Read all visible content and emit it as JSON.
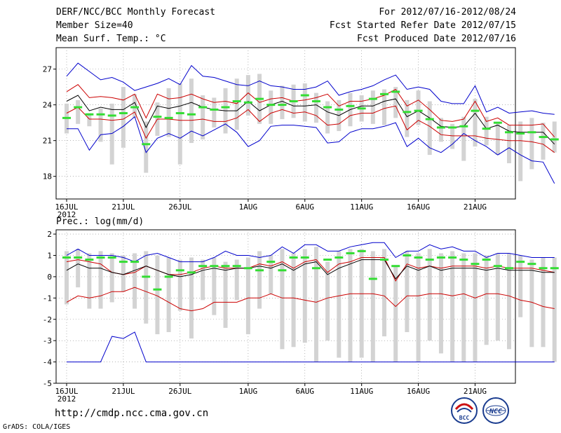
{
  "header": {
    "left_line1": "DERF/NCC/BCC Monthly Forecast",
    "left_line2": "Member Size=40",
    "left_line3": "Mean Surf. Temp.: °C",
    "right_line1": "For 2012/07/16-2012/08/24",
    "right_line2": "Fcst Started Refer Date 2012/07/15",
    "right_line3": "Fcst Produced Date 2012/07/16"
  },
  "precip_title": "Prec.: log(mm/d)",
  "footer": {
    "url": "http://cmdp.ncc.cma.gov.cn",
    "grads": "GrADS: COLA/IGES"
  },
  "logos": {
    "left": "BCC",
    "right": "NCC"
  },
  "colors": {
    "max_min": "#0000cc",
    "spread": "#cc0000",
    "mean": "#000000",
    "obs": "#33dd33",
    "box": "#d3d3d3"
  },
  "chart_data": [
    {
      "type": "line",
      "title": "Mean Surf. Temp.: °C",
      "x_tick_labels": [
        "16JUL",
        "21JUL",
        "26JUL",
        "1AUG",
        "6AUG",
        "11AUG",
        "16AUG",
        "21AUG"
      ],
      "x_tick_sublabel": "2012",
      "x_tick_days": [
        1,
        6,
        11,
        17,
        22,
        27,
        32,
        37
      ],
      "days": 40,
      "ylim": [
        16.1,
        28.8
      ],
      "yticks": [
        18,
        21,
        24,
        27
      ],
      "series": [
        {
          "name": "ensemble max",
          "color": "#0000cc",
          "values": [
            26.4,
            27.5,
            26.8,
            26.1,
            26.3,
            25.9,
            25.2,
            25.5,
            25.8,
            26.2,
            25.7,
            27.3,
            26.4,
            26.3,
            26.0,
            25.7,
            25.6,
            26.0,
            25.6,
            25.5,
            25.3,
            25.3,
            25.5,
            26.0,
            24.8,
            25.1,
            25.3,
            25.6,
            26.1,
            26.5,
            25.3,
            25.5,
            25.3,
            24.3,
            24.1,
            24.1,
            25.6,
            23.4,
            23.8,
            23.3,
            23.4,
            23.5,
            23.3,
            23.2
          ]
        },
        {
          "name": "ensemble min",
          "color": "#0000cc",
          "values": [
            22.0,
            22.0,
            20.2,
            21.5,
            21.6,
            22.2,
            23.0,
            20.0,
            21.2,
            21.6,
            21.2,
            21.8,
            21.4,
            21.9,
            22.4,
            21.7,
            20.5,
            21.0,
            22.2,
            22.3,
            22.3,
            22.2,
            22.1,
            20.8,
            20.9,
            21.7,
            22.0,
            22.0,
            22.2,
            22.5,
            20.5,
            21.2,
            20.4,
            20.0,
            20.7,
            21.6,
            21.0,
            20.5,
            19.8,
            20.4,
            19.8,
            19.3,
            19.2,
            17.4
          ]
        },
        {
          "name": "upper spread",
          "color": "#cc0000",
          "values": [
            25.1,
            25.7,
            24.6,
            24.7,
            24.6,
            24.4,
            24.9,
            22.9,
            24.9,
            24.5,
            24.6,
            24.9,
            24.5,
            24.2,
            24.3,
            24.1,
            25.0,
            24.2,
            24.5,
            24.6,
            24.3,
            24.4,
            24.6,
            24.9,
            23.9,
            24.3,
            24.3,
            24.5,
            24.8,
            25.3,
            23.9,
            24.4,
            23.6,
            22.7,
            22.6,
            22.8,
            24.3,
            22.6,
            22.9,
            22.3,
            22.3,
            22.3,
            22.4,
            21.3
          ]
        },
        {
          "name": "lower spread",
          "color": "#cc0000",
          "values": [
            23.3,
            23.8,
            22.8,
            22.8,
            22.7,
            22.8,
            23.4,
            21.2,
            22.8,
            22.8,
            22.7,
            22.7,
            22.8,
            22.6,
            22.6,
            22.9,
            23.6,
            22.6,
            23.3,
            23.6,
            23.3,
            23.4,
            23.1,
            22.3,
            22.4,
            23.1,
            23.3,
            23.3,
            23.7,
            23.9,
            21.9,
            22.7,
            22.2,
            21.5,
            21.4,
            21.4,
            21.4,
            21.2,
            21.1,
            21.0,
            21.0,
            20.9,
            20.7,
            20.0
          ]
        },
        {
          "name": "ensemble mean",
          "color": "#000000",
          "values": [
            24.3,
            24.8,
            23.5,
            23.8,
            23.6,
            23.6,
            24.2,
            22.1,
            23.9,
            23.7,
            23.9,
            24.2,
            23.8,
            23.6,
            23.5,
            23.5,
            24.3,
            23.5,
            24.0,
            24.3,
            23.9,
            23.9,
            24.0,
            23.4,
            23.1,
            23.6,
            23.9,
            23.9,
            24.3,
            24.5,
            23.0,
            23.5,
            22.9,
            22.2,
            22.1,
            22.2,
            23.3,
            22.0,
            22.3,
            21.8,
            21.7,
            21.7,
            21.7,
            20.7
          ]
        },
        {
          "name": "observation",
          "color": "#33dd33",
          "values": [
            22.9,
            23.8,
            23.2,
            23.2,
            23.1,
            23.3,
            23.8,
            20.7,
            23.0,
            22.9,
            23.3,
            23.2,
            23.8,
            23.6,
            23.8,
            24.3,
            24.2,
            24.5,
            24.0,
            24.0,
            24.3,
            24.8,
            24.3,
            23.8,
            23.6,
            23.9,
            23.7,
            24.5,
            24.9,
            25.1,
            23.4,
            23.5,
            22.8,
            22.1,
            22.1,
            22.2,
            23.5,
            22.0,
            22.5,
            21.7,
            21.6,
            21.7,
            21.3,
            21.1
          ]
        },
        {
          "name": "box top",
          "color": "#d3d3d3",
          "values": [
            24.1,
            24.4,
            23.3,
            23.7,
            24.1,
            25.5,
            24.9,
            22.6,
            24.2,
            25.4,
            25.8,
            26.2,
            24.8,
            24.6,
            25.4,
            26.2,
            26.5,
            26.6,
            25.2,
            25.6,
            25.7,
            25.8,
            25.0,
            24.3,
            24.4,
            25.0,
            24.8,
            25.2,
            25.3,
            25.5,
            24.4,
            25.2,
            24.3,
            22.9,
            22.4,
            23.0,
            24.5,
            23.0,
            22.5,
            22.3,
            22.6,
            22.9,
            22.5,
            22.6
          ]
        },
        {
          "name": "box bottom",
          "color": "#d3d3d3",
          "values": [
            21.6,
            22.4,
            22.2,
            20.9,
            19.0,
            20.4,
            22.9,
            18.3,
            21.4,
            21.3,
            19.0,
            20.8,
            21.1,
            22.1,
            21.6,
            21.9,
            23.1,
            22.4,
            22.4,
            22.8,
            22.9,
            22.6,
            22.5,
            21.6,
            21.8,
            22.2,
            22.6,
            22.4,
            22.3,
            22.9,
            21.3,
            22.3,
            19.8,
            20.9,
            20.3,
            19.3,
            20.5,
            20.6,
            19.8,
            19.1,
            17.6,
            18.6,
            19.4,
            20.0
          ]
        }
      ]
    },
    {
      "type": "line",
      "title": "Prec.: log(mm/d)",
      "x_tick_labels": [
        "16JUL",
        "21JUL",
        "26JUL",
        "1AUG",
        "6AUG",
        "11AUG",
        "16AUG",
        "21AUG"
      ],
      "x_tick_sublabel": "2012",
      "x_tick_days": [
        1,
        6,
        11,
        17,
        22,
        27,
        32,
        37
      ],
      "days": 40,
      "ylim": [
        -5,
        2.2
      ],
      "yticks": [
        -5,
        -4,
        -3,
        -2,
        -1,
        0,
        1,
        2
      ],
      "series": [
        {
          "name": "ensemble max",
          "color": "#0000cc",
          "values": [
            1.0,
            1.3,
            1.0,
            1.0,
            1.0,
            0.9,
            0.7,
            1.0,
            1.1,
            0.9,
            0.7,
            0.7,
            0.7,
            0.9,
            1.2,
            1.0,
            1.0,
            0.9,
            1.0,
            1.4,
            1.1,
            1.5,
            1.5,
            1.2,
            1.2,
            1.4,
            1.5,
            1.6,
            1.6,
            0.9,
            1.2,
            1.2,
            1.5,
            1.3,
            1.4,
            1.2,
            1.2,
            0.9,
            1.1,
            1.1,
            1.0,
            0.9,
            0.9,
            0.9
          ]
        },
        {
          "name": "ensemble min",
          "color": "#0000cc",
          "values": [
            -4.0,
            -4.0,
            -4.0,
            -4.0,
            -2.8,
            -2.9,
            -2.6,
            -4.0,
            -4.0,
            -4.0,
            -4.0,
            -4.0,
            -4.0,
            -4.0,
            -4.0,
            -4.0,
            -4.0,
            -4.0,
            -4.0,
            -4.0,
            -4.0,
            -4.0,
            -4.0,
            -4.0,
            -4.0,
            -4.0,
            -4.0,
            -4.0,
            -4.0,
            -4.0,
            -4.0,
            -4.0,
            -4.0,
            -4.0,
            -4.0,
            -4.0,
            -4.0,
            -4.0,
            -4.0,
            -4.0,
            -4.0,
            -4.0,
            -4.0,
            -4.0
          ]
        },
        {
          "name": "upper spread",
          "color": "#cc0000",
          "values": [
            0.7,
            0.8,
            0.7,
            0.6,
            0.2,
            0.1,
            0.2,
            0.5,
            0.3,
            0.1,
            0.1,
            0.2,
            0.4,
            0.5,
            0.4,
            0.4,
            0.4,
            0.6,
            0.5,
            0.7,
            0.4,
            0.7,
            0.8,
            0.2,
            0.6,
            0.7,
            0.9,
            0.9,
            0.9,
            -0.2,
            0.6,
            0.4,
            0.5,
            0.4,
            0.5,
            0.5,
            0.5,
            0.4,
            0.5,
            0.4,
            0.4,
            0.4,
            0.3,
            0.2
          ]
        },
        {
          "name": "lower spread",
          "color": "#cc0000",
          "values": [
            -1.2,
            -0.9,
            -1.0,
            -0.9,
            -0.7,
            -0.7,
            -0.5,
            -0.7,
            -0.9,
            -1.2,
            -1.5,
            -1.6,
            -1.5,
            -1.2,
            -1.2,
            -1.2,
            -1.0,
            -1.0,
            -0.8,
            -1.0,
            -1.0,
            -1.1,
            -1.2,
            -1.0,
            -0.9,
            -0.8,
            -0.8,
            -0.8,
            -0.9,
            -1.4,
            -0.9,
            -0.9,
            -0.8,
            -0.8,
            -0.9,
            -0.8,
            -1.0,
            -0.8,
            -0.8,
            -0.9,
            -1.1,
            -1.2,
            -1.4,
            -1.5
          ]
        },
        {
          "name": "ensemble mean",
          "color": "#000000",
          "values": [
            0.3,
            0.6,
            0.4,
            0.4,
            0.2,
            0.1,
            0.3,
            0.5,
            0.3,
            0.1,
            0.0,
            0.1,
            0.3,
            0.4,
            0.3,
            0.4,
            0.4,
            0.5,
            0.4,
            0.6,
            0.3,
            0.6,
            0.7,
            0.1,
            0.4,
            0.6,
            0.8,
            0.8,
            0.8,
            -0.1,
            0.5,
            0.3,
            0.5,
            0.3,
            0.4,
            0.4,
            0.4,
            0.3,
            0.4,
            0.3,
            0.3,
            0.3,
            0.2,
            0.2
          ]
        },
        {
          "name": "observation",
          "color": "#33dd33",
          "values": [
            0.9,
            0.9,
            0.8,
            0.9,
            0.9,
            0.7,
            0.7,
            0.0,
            -0.6,
            0.0,
            0.3,
            0.2,
            0.5,
            0.5,
            0.5,
            0.5,
            0.4,
            0.3,
            0.7,
            0.3,
            0.9,
            0.9,
            0.4,
            0.8,
            0.9,
            1.1,
            1.2,
            -0.1,
            0.8,
            0.5,
            1.0,
            0.9,
            0.8,
            0.9,
            0.9,
            0.8,
            0.6,
            0.8,
            0.5,
            0.4,
            0.7,
            0.6,
            0.4,
            0.4
          ]
        },
        {
          "name": "box top",
          "color": "#d3d3d3",
          "values": [
            1.2,
            1.3,
            1.1,
            1.2,
            1.1,
            1.0,
            1.1,
            1.2,
            1.0,
            0.9,
            0.8,
            0.9,
            0.8,
            0.9,
            0.7,
            0.8,
            0.9,
            1.2,
            1.0,
            1.3,
            1.1,
            1.3,
            1.4,
            0.7,
            1.2,
            1.3,
            1.3,
            1.2,
            1.3,
            0.5,
            1.2,
            1.1,
            1.3,
            1.1,
            1.2,
            1.1,
            1.1,
            1.0,
            1.1,
            1.1,
            1.0,
            0.8,
            0.9,
            0.9
          ]
        },
        {
          "name": "box bottom",
          "color": "#d3d3d3",
          "values": [
            -1.3,
            -0.5,
            -1.5,
            -1.5,
            -1.2,
            -0.7,
            -1.5,
            -2.2,
            -2.7,
            -2.6,
            -1.6,
            -2.9,
            -1.1,
            -1.8,
            -2.4,
            -1.1,
            -2.7,
            -1.5,
            -0.8,
            -3.4,
            -3.3,
            -3.1,
            -4.0,
            -3.0,
            -3.8,
            -4.0,
            -3.8,
            -4.0,
            -2.8,
            -4.0,
            -2.6,
            -4.0,
            -3.0,
            -3.6,
            -4.0,
            -4.0,
            -4.0,
            -3.2,
            -3.0,
            -3.4,
            -1.9,
            -3.3,
            -3.3,
            -4.0
          ]
        }
      ]
    }
  ]
}
